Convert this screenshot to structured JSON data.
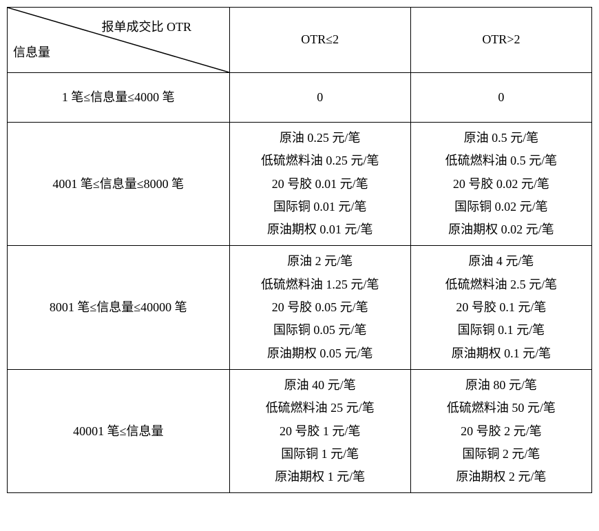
{
  "table": {
    "type": "table",
    "background_color": "#ffffff",
    "border_color": "#000000",
    "text_color": "#000000",
    "font_family": "SimSun",
    "font_size_pt": 14,
    "header": {
      "diagonal_label_top": "报单成交比 OTR",
      "diagonal_label_bottom": "信息量",
      "col1": "OTR≤2",
      "col2": "OTR>2"
    },
    "rows": [
      {
        "label": "1 笔≤信息量≤4000 笔",
        "c1_lines": [
          "0"
        ],
        "c2_lines": [
          "0"
        ]
      },
      {
        "label": "4001 笔≤信息量≤8000 笔",
        "c1_lines": [
          "原油 0.25 元/笔",
          "低硫燃料油 0.25 元/笔",
          "20 号胶 0.01 元/笔",
          "国际铜 0.01 元/笔",
          "原油期权 0.01 元/笔"
        ],
        "c2_lines": [
          "原油 0.5 元/笔",
          "低硫燃料油 0.5 元/笔",
          "20 号胶 0.02 元/笔",
          "国际铜 0.02 元/笔",
          "原油期权 0.02 元/笔"
        ]
      },
      {
        "label": "8001 笔≤信息量≤40000 笔",
        "c1_lines": [
          "原油 2 元/笔",
          "低硫燃料油 1.25 元/笔",
          "20 号胶 0.05 元/笔",
          "国际铜 0.05 元/笔",
          "原油期权 0.05 元/笔"
        ],
        "c2_lines": [
          "原油 4 元/笔",
          "低硫燃料油 2.5 元/笔",
          "20 号胶 0.1 元/笔",
          "国际铜 0.1 元/笔",
          "原油期权 0.1 元/笔"
        ]
      },
      {
        "label": "40001 笔≤信息量",
        "c1_lines": [
          "原油 40 元/笔",
          "低硫燃料油 25 元/笔",
          "20 号胶 1 元/笔",
          "国际铜 1 元/笔",
          "原油期权 1 元/笔"
        ],
        "c2_lines": [
          "原油 80 元/笔",
          "低硫燃料油 50 元/笔",
          "20 号胶 2 元/笔",
          "国际铜 2 元/笔",
          "原油期权 2 元/笔"
        ]
      }
    ]
  }
}
